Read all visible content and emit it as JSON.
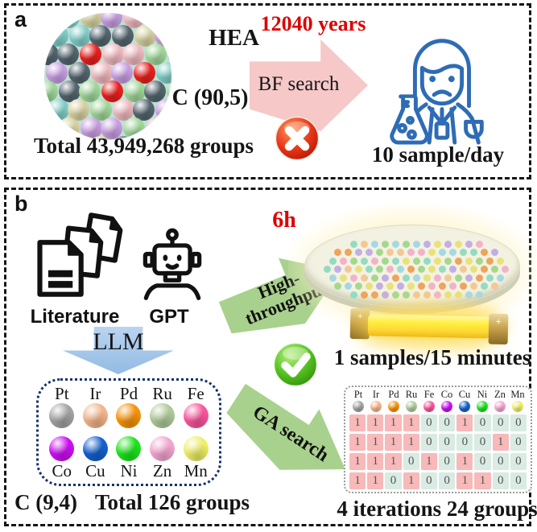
{
  "panel_a": {
    "label": "a",
    "alloy_label": "HEA",
    "combination": "C (90,5)",
    "total_groups": "Total 43,949,268 groups",
    "search_time": "12040 years",
    "search_method": "BF search",
    "throughput": "10 sample/day"
  },
  "panel_b": {
    "label": "b",
    "literature_label": "Literature",
    "gpt_label": "GPT",
    "llm_arrow_label": "LLM",
    "combination": "C (9,4)",
    "total_groups": "Total 126 groups",
    "search_time": "6h",
    "ht_line1": "High-",
    "ht_line2": "throughput",
    "ga_arrow_label": "GA search",
    "wafer_caption": "1 samples/15 minutes",
    "iterations_caption": "4 iterations 24 groups",
    "heater_terminal_left": "+",
    "heater_terminal_right": "+",
    "elements": [
      {
        "symbol": "Pt",
        "color": "#a2a2a2"
      },
      {
        "symbol": "Ir",
        "color": "#f2b48a"
      },
      {
        "symbol": "Pd",
        "color": "#f5920b"
      },
      {
        "symbol": "Ru",
        "color": "#aec99a"
      },
      {
        "symbol": "Fe",
        "color": "#f8559b"
      },
      {
        "symbol": "Co",
        "color": "#cb0ef0"
      },
      {
        "symbol": "Cu",
        "color": "#1460cf"
      },
      {
        "symbol": "Ni",
        "color": "#1ce41c"
      },
      {
        "symbol": "Zn",
        "color": "#f4a5d0"
      },
      {
        "symbol": "Mn",
        "color": "#eeee66"
      }
    ],
    "selection_table": {
      "rows": [
        [
          1,
          1,
          1,
          1,
          0,
          0,
          1,
          0,
          0,
          0
        ],
        [
          1,
          1,
          1,
          1,
          0,
          0,
          0,
          0,
          1,
          0
        ],
        [
          1,
          1,
          1,
          0,
          1,
          0,
          1,
          0,
          0,
          0
        ],
        [
          1,
          1,
          0,
          1,
          0,
          0,
          1,
          1,
          0,
          0
        ]
      ]
    }
  },
  "colors": {
    "accent_red": "#dd0000",
    "arrow_pink": "#f6c8c8",
    "arrow_blue": "#a7c6e8",
    "arrow_green": "#a9d18e",
    "person_blue": "#2e6cb5",
    "cell_one_bg": "#f7b9b9",
    "cell_zero_bg": "#d9ebe3",
    "sphere_palette": [
      "#7fcdc7",
      "#edb7be",
      "#9fd699",
      "#c79de0",
      "#d5d0a0",
      "#54656e"
    ],
    "sphere_highlight": "#e8201e",
    "wafer_dot_palette": [
      "#eda45c",
      "#e9e27a",
      "#a5d88f",
      "#93dcc2",
      "#f2b3ca",
      "#c3aee4",
      "#a6d8e2",
      "#f3c897"
    ]
  }
}
